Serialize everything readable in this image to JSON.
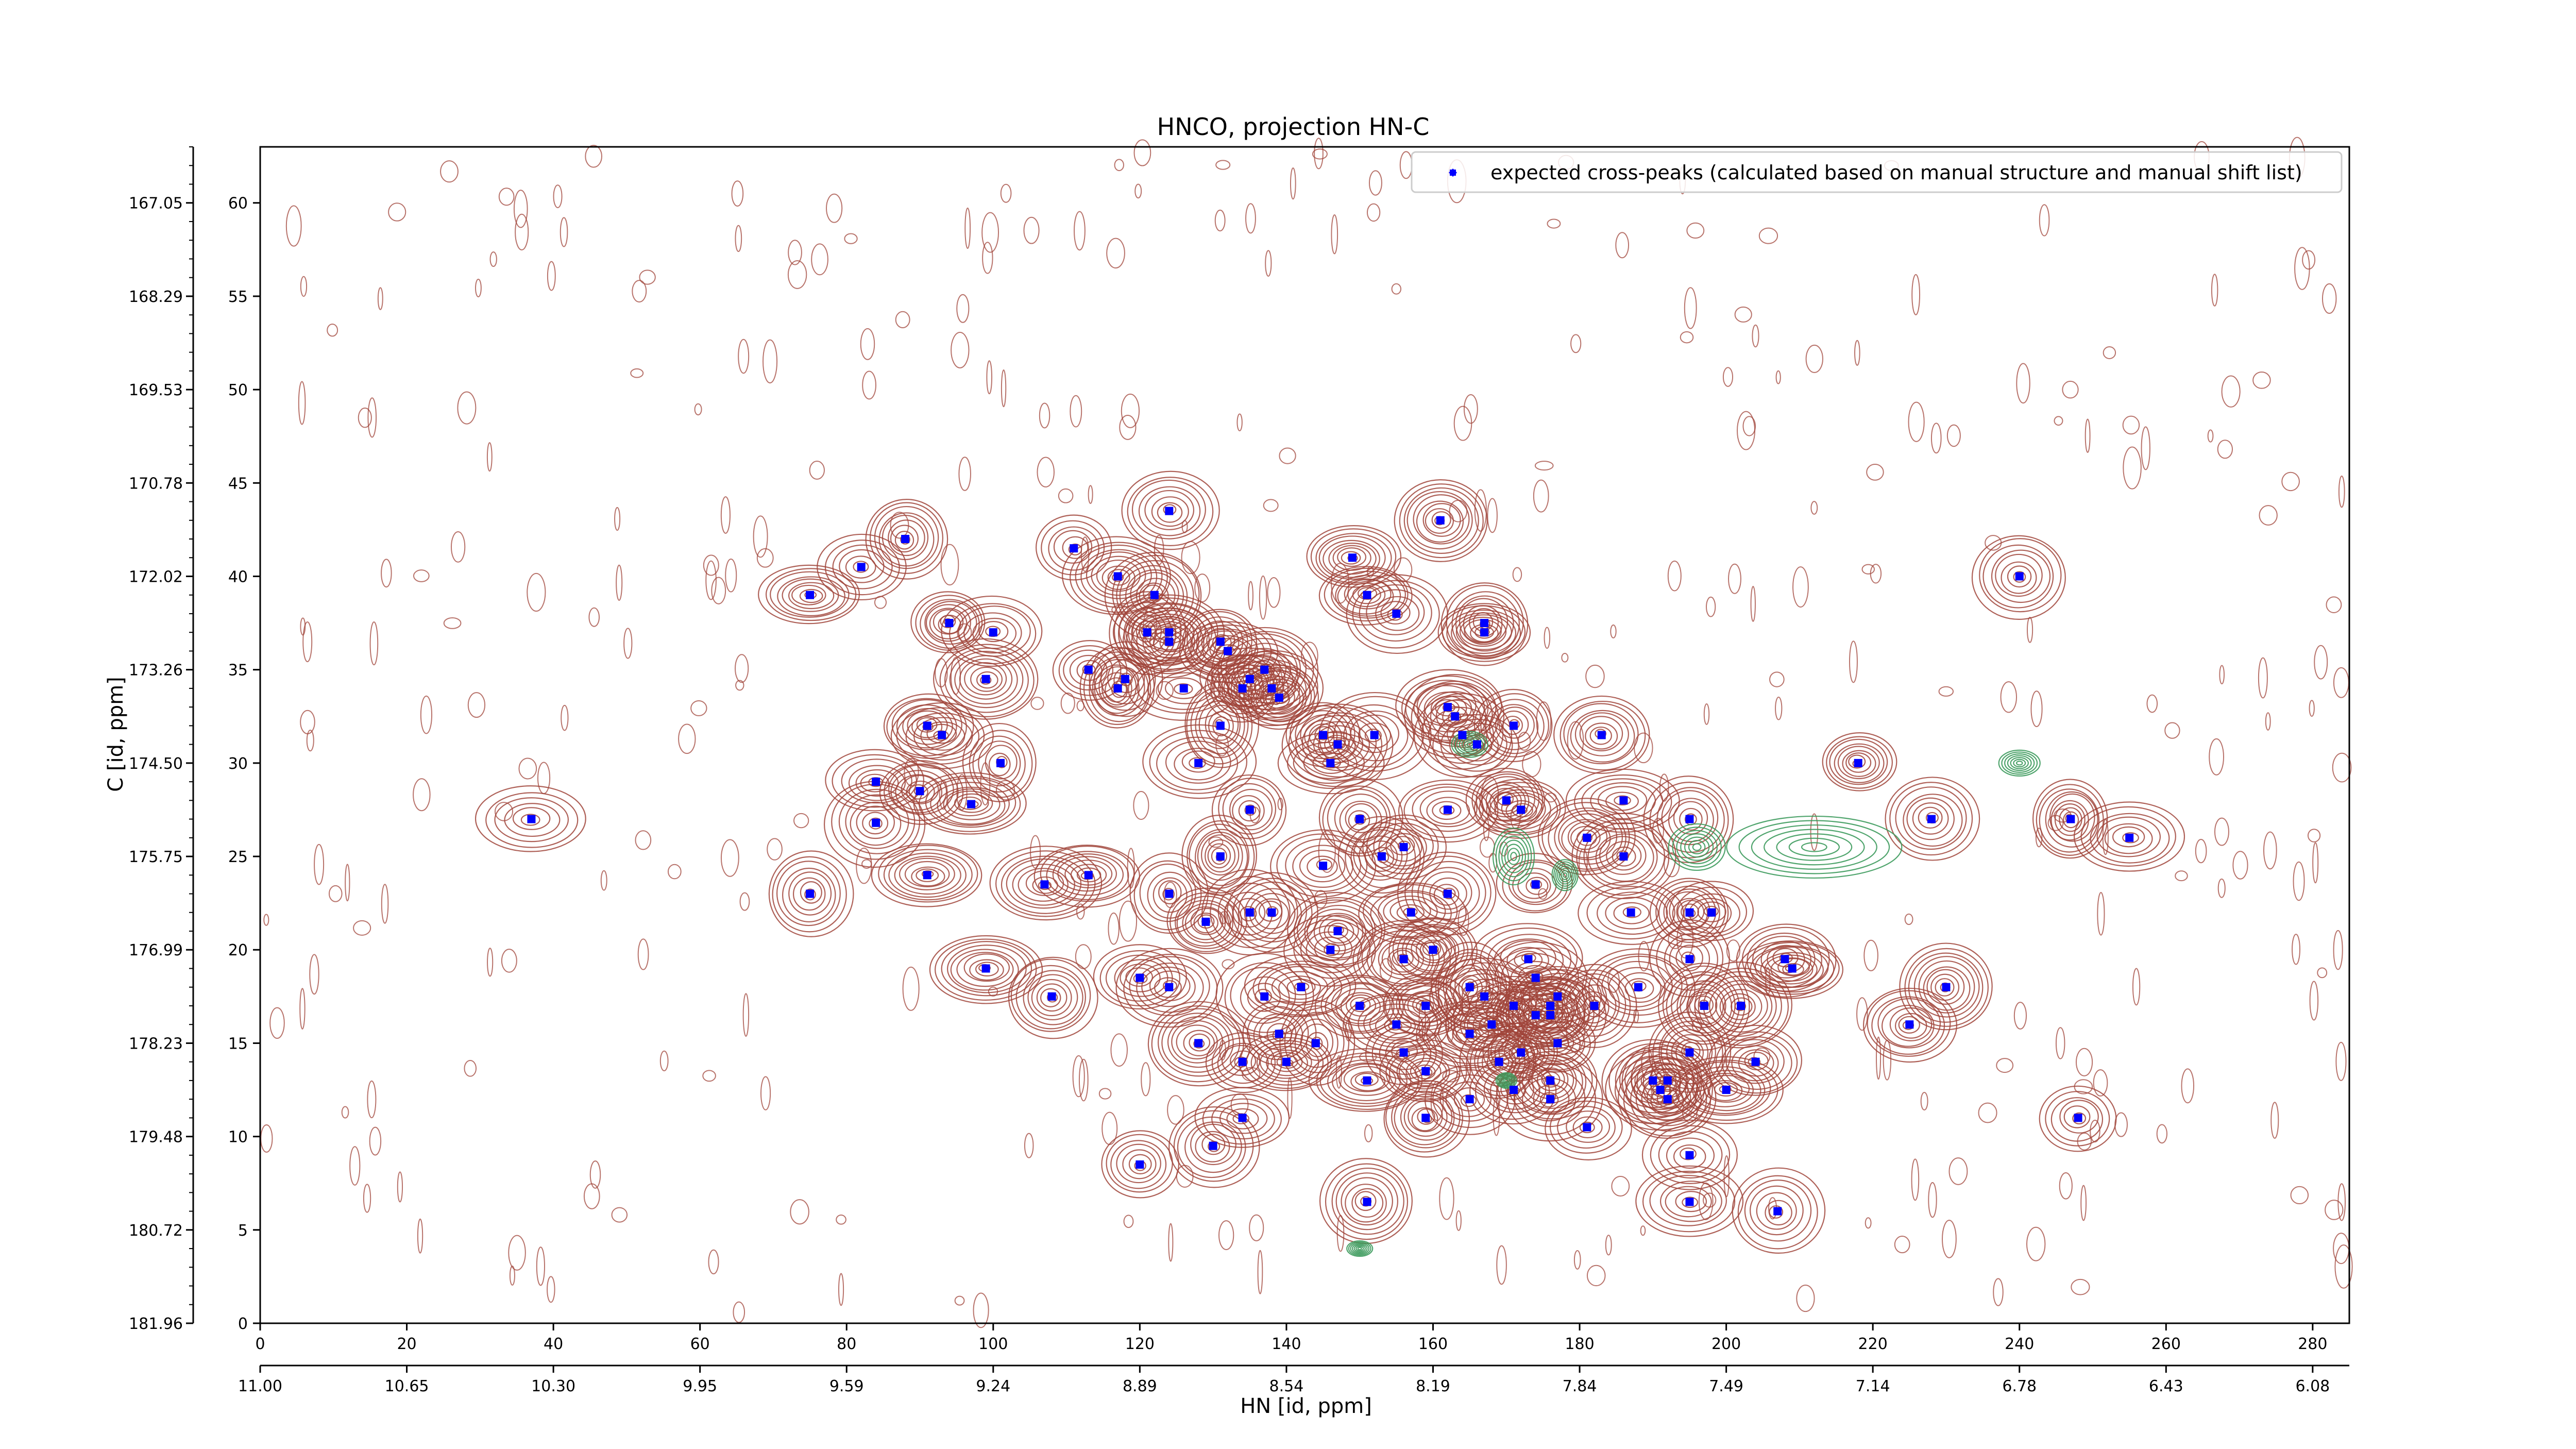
{
  "chart_data": {
    "type": "scatter",
    "title": "HNCO, projection HN-C",
    "xlabel": "HN [id, ppm]",
    "ylabel": "C [id, ppm]",
    "xlim": [
      0,
      285
    ],
    "ylim": [
      0,
      63
    ],
    "x_ticks": [
      "0",
      "20",
      "40",
      "60",
      "80",
      "100",
      "120",
      "140",
      "160",
      "180",
      "200",
      "220",
      "240",
      "260",
      "280"
    ],
    "y_ticks": [
      "0",
      "5",
      "10",
      "15",
      "20",
      "25",
      "30",
      "35",
      "40",
      "45",
      "50",
      "55",
      "60"
    ],
    "hn_ticks": [
      "11.00",
      "10.65",
      "10.30",
      "9.95",
      "9.59",
      "9.24",
      "8.89",
      "8.54",
      "8.19",
      "7.84",
      "7.49",
      "7.14",
      "6.78",
      "6.43",
      "6.08"
    ],
    "c_ticks": [
      "181.96",
      "180.72",
      "179.48",
      "178.23",
      "176.99",
      "175.75",
      "174.50",
      "173.26",
      "172.02",
      "170.78",
      "169.53",
      "168.29",
      "167.05"
    ],
    "legend": {
      "position": "top-right",
      "label": "expected cross-peaks (calculated based on manual structure and manual shift list)",
      "marker_color": "#0000ff"
    },
    "contour_colors": {
      "positive": "#a0443a",
      "negative": "#3c9a5c"
    },
    "series": [
      {
        "name": "expected cross-peaks (calculated based on manual structure and manual shift list)",
        "color": "#0000ff",
        "points": [
          [
            37,
            27.0
          ],
          [
            75,
            39.0
          ],
          [
            75,
            23.0
          ],
          [
            82,
            40.5
          ],
          [
            84,
            26.8
          ],
          [
            84,
            29.0
          ],
          [
            88,
            42.0
          ],
          [
            90,
            28.5
          ],
          [
            91,
            32.0
          ],
          [
            91,
            24.0
          ],
          [
            93,
            31.5
          ],
          [
            94,
            37.5
          ],
          [
            97,
            27.8
          ],
          [
            99,
            34.5
          ],
          [
            99,
            19.0
          ],
          [
            100,
            37.0
          ],
          [
            101,
            30.0
          ],
          [
            107,
            23.5
          ],
          [
            108,
            17.5
          ],
          [
            111,
            41.5
          ],
          [
            113,
            35.0
          ],
          [
            113,
            24.0
          ],
          [
            117,
            34.0
          ],
          [
            117,
            40.0
          ],
          [
            118,
            34.5
          ],
          [
            120,
            18.5
          ],
          [
            120,
            8.5
          ],
          [
            121,
            37.0
          ],
          [
            122,
            39.0
          ],
          [
            124,
            43.5
          ],
          [
            124,
            37.0
          ],
          [
            124,
            36.5
          ],
          [
            124,
            23.0
          ],
          [
            124,
            18.0
          ],
          [
            126,
            34.0
          ],
          [
            128,
            30.0
          ],
          [
            128,
            15.0
          ],
          [
            129,
            21.5
          ],
          [
            130,
            9.5
          ],
          [
            131,
            25.0
          ],
          [
            131,
            36.5
          ],
          [
            131,
            32.0
          ],
          [
            132,
            36.0
          ],
          [
            134,
            34.0
          ],
          [
            134,
            11.0
          ],
          [
            134,
            14.0
          ],
          [
            135,
            34.5
          ],
          [
            135,
            27.5
          ],
          [
            135,
            22.0
          ],
          [
            137,
            35.0
          ],
          [
            137,
            17.5
          ],
          [
            138,
            22.0
          ],
          [
            138,
            34.0
          ],
          [
            139,
            15.5
          ],
          [
            139,
            33.5
          ],
          [
            140,
            14.0
          ],
          [
            142,
            18.0
          ],
          [
            144,
            15.0
          ],
          [
            145,
            31.5
          ],
          [
            145,
            24.5
          ],
          [
            146,
            30.0
          ],
          [
            146,
            20.0
          ],
          [
            147,
            31.0
          ],
          [
            147,
            21.0
          ],
          [
            149,
            41.0
          ],
          [
            150,
            17.0
          ],
          [
            150,
            27.0
          ],
          [
            151,
            39.0
          ],
          [
            151,
            13.0
          ],
          [
            151,
            6.5
          ],
          [
            152,
            31.5
          ],
          [
            153,
            25.0
          ],
          [
            155,
            16.0
          ],
          [
            155,
            38.0
          ],
          [
            156,
            25.5
          ],
          [
            156,
            19.5
          ],
          [
            156,
            14.5
          ],
          [
            157,
            22.0
          ],
          [
            159,
            17.0
          ],
          [
            159,
            13.5
          ],
          [
            159,
            11.0
          ],
          [
            160,
            20.0
          ],
          [
            161,
            43.0
          ],
          [
            162,
            27.5
          ],
          [
            162,
            23.0
          ],
          [
            162,
            33.0
          ],
          [
            163,
            32.5
          ],
          [
            164,
            31.5
          ],
          [
            165,
            18.0
          ],
          [
            165,
            15.5
          ],
          [
            165,
            12.0
          ],
          [
            166,
            31.0
          ],
          [
            167,
            37.5
          ],
          [
            167,
            37.0
          ],
          [
            167,
            17.5
          ],
          [
            168,
            16.0
          ],
          [
            169,
            14.0
          ],
          [
            170,
            28.0
          ],
          [
            171,
            32.0
          ],
          [
            171,
            17.0
          ],
          [
            171,
            12.5
          ],
          [
            172,
            27.5
          ],
          [
            172,
            14.5
          ],
          [
            173,
            19.5
          ],
          [
            174,
            23.5
          ],
          [
            174,
            18.5
          ],
          [
            174,
            16.5
          ],
          [
            176,
            16.5
          ],
          [
            176,
            13.0
          ],
          [
            176,
            12.0
          ],
          [
            176,
            17.0
          ],
          [
            177,
            17.5
          ],
          [
            177,
            15.0
          ],
          [
            181,
            26.0
          ],
          [
            181,
            10.5
          ],
          [
            182,
            17.0
          ],
          [
            183,
            31.5
          ],
          [
            186,
            28.0
          ],
          [
            186,
            25.0
          ],
          [
            187,
            22.0
          ],
          [
            188,
            18.0
          ],
          [
            190,
            13.0
          ],
          [
            191,
            12.5
          ],
          [
            192,
            13.0
          ],
          [
            192,
            12.0
          ],
          [
            195,
            27.0
          ],
          [
            195,
            22.0
          ],
          [
            195,
            19.5
          ],
          [
            195,
            14.5
          ],
          [
            195,
            9.0
          ],
          [
            195,
            6.5
          ],
          [
            197,
            17.0
          ],
          [
            198,
            22.0
          ],
          [
            200,
            12.5
          ],
          [
            202,
            17.0
          ],
          [
            204,
            14.0
          ],
          [
            207,
            6.0
          ],
          [
            208,
            19.5
          ],
          [
            209,
            19.0
          ],
          [
            218,
            30.0
          ],
          [
            225,
            16.0
          ],
          [
            228,
            27.0
          ],
          [
            230,
            18.0
          ],
          [
            240,
            40.0
          ],
          [
            247,
            27.0
          ],
          [
            248,
            11.0
          ],
          [
            255,
            26.0
          ]
        ]
      }
    ]
  }
}
